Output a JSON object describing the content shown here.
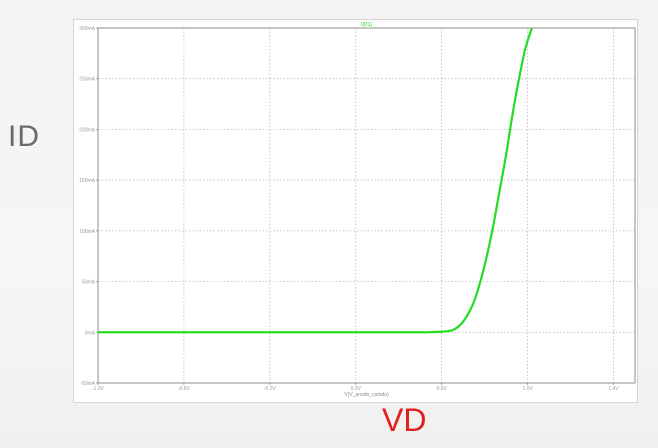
{
  "side_labels": {
    "y": "ID",
    "x": "VD"
  },
  "chart_data": {
    "type": "line",
    "title": "I(D1)",
    "xlabel": "V(V_anodo_catodo)",
    "ylabel": "",
    "xlim": [
      -1.0,
      1.5
    ],
    "ylim": [
      -50,
      300
    ],
    "x_ticks": [
      -1.0,
      -0.6,
      -0.2,
      0.2,
      0.6,
      1.0,
      1.4
    ],
    "x_tick_labels": [
      "-1.0V",
      "-0.6V",
      "-0.2V",
      "0.2V",
      "0.6V",
      "1.0V",
      "1.4V"
    ],
    "y_ticks": [
      -50,
      0,
      50,
      100,
      150,
      200,
      250,
      300
    ],
    "y_tick_labels": [
      "-50mA",
      "0mA",
      "50mA",
      "100mA",
      "150mA",
      "200mA",
      "250mA",
      "300mA"
    ],
    "grid": true,
    "series": [
      {
        "name": "I(D1)",
        "color": "#22dd22",
        "x": [
          -1.0,
          -0.6,
          -0.2,
          0.2,
          0.5,
          0.55,
          0.6,
          0.63,
          0.66,
          0.69,
          0.72,
          0.75,
          0.78,
          0.81,
          0.84,
          0.87,
          0.9,
          0.93,
          0.96,
          0.99,
          1.02
        ],
        "y": [
          0,
          0,
          0,
          0,
          0,
          0.2,
          0.5,
          1.2,
          3,
          8,
          17,
          30,
          50,
          75,
          105,
          140,
          175,
          215,
          250,
          280,
          300
        ]
      }
    ]
  }
}
